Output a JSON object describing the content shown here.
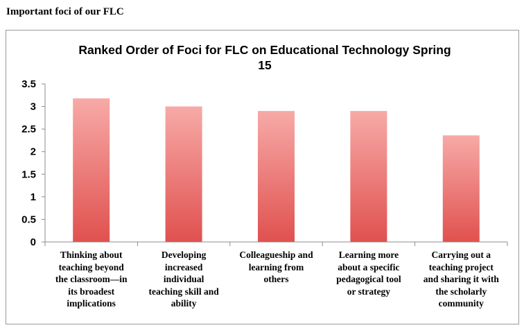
{
  "page": {
    "heading": "Important foci of our FLC"
  },
  "chart_data": {
    "type": "bar",
    "title": "Ranked Order of Foci for FLC on Educational Technology Spring 15",
    "title_lines": [
      "Ranked Order of Foci for FLC on Educational Technology Spring",
      "15"
    ],
    "categories": [
      "Thinking about teaching beyond the classroom—in its broadest implications",
      "Developing increased individual teaching skill and ability",
      "Colleagueship and learning from others",
      "Learning more about a specific pedagogical tool or strategy",
      "Carrying out a teaching project and sharing it with the scholarly community"
    ],
    "category_lines": [
      [
        "Thinking about",
        "teaching beyond",
        "the classroom—in",
        "its broadest",
        "implications"
      ],
      [
        "Developing",
        "increased",
        "individual",
        "teaching skill and",
        "ability"
      ],
      [
        "Colleagueship and",
        "learning from",
        "others"
      ],
      [
        "Learning more",
        "about a specific",
        "pedagogical tool",
        "or strategy"
      ],
      [
        "Carrying out a",
        "teaching project",
        "and sharing it with",
        "the scholarly",
        "community"
      ]
    ],
    "values": [
      3.18,
      3.0,
      2.9,
      2.9,
      2.36
    ],
    "ylim": [
      0,
      3.5
    ],
    "yticks": [
      "0",
      "0.5",
      "1",
      "1.5",
      "2",
      "2.5",
      "3",
      "3.5"
    ],
    "ytick_values": [
      0,
      0.5,
      1,
      1.5,
      2,
      2.5,
      3,
      3.5
    ],
    "xlabel": "",
    "ylabel": "",
    "grid": false,
    "legend": "none",
    "colors": {
      "bar_top": "#f7aaa7",
      "bar_bottom": "#e0514f",
      "axis": "#8c8c8c"
    }
  }
}
